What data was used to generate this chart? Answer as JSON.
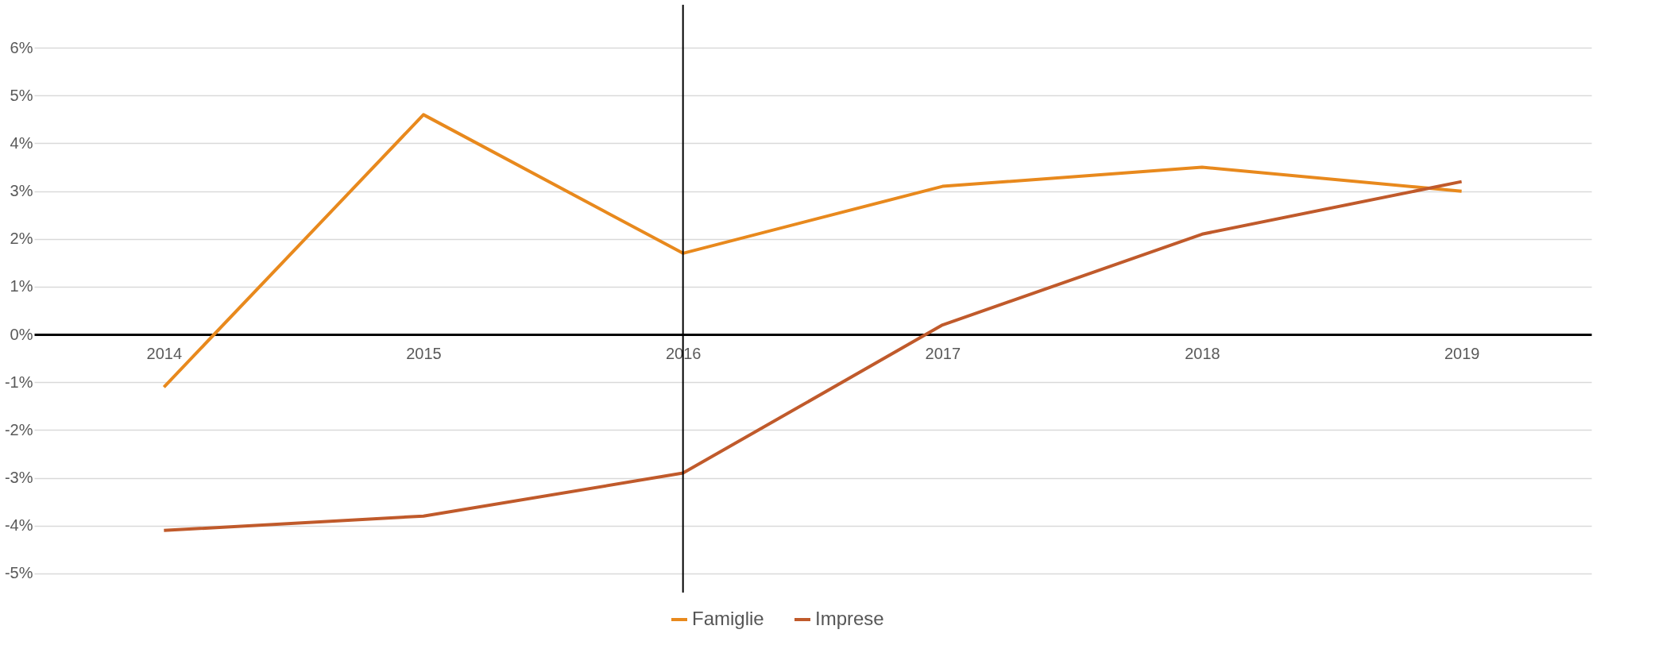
{
  "chart_data": {
    "type": "line",
    "categories": [
      "2014",
      "2015",
      "2016",
      "2017",
      "2018",
      "2019"
    ],
    "series": [
      {
        "name": "Famiglie",
        "color": "#e8891d",
        "values": [
          -1.1,
          4.6,
          1.7,
          3.1,
          3.5,
          3.0
        ]
      },
      {
        "name": "Imprese",
        "color": "#c05a2b",
        "values": [
          -4.1,
          -3.8,
          -2.9,
          0.2,
          2.1,
          3.2
        ]
      }
    ],
    "ylim": [
      -5.4,
      6.9
    ],
    "yticks": [
      {
        "value": -5,
        "label": "-5%"
      },
      {
        "value": -4,
        "label": "-4%"
      },
      {
        "value": -3,
        "label": "-3%"
      },
      {
        "value": -2,
        "label": "-2%"
      },
      {
        "value": -1,
        "label": "-1%"
      },
      {
        "value": 0,
        "label": "0%"
      },
      {
        "value": 1,
        "label": "1%"
      },
      {
        "value": 2,
        "label": "2%"
      },
      {
        "value": 3,
        "label": "3%"
      },
      {
        "value": 4,
        "label": "4%"
      },
      {
        "value": 5,
        "label": "5%"
      },
      {
        "value": 6,
        "label": "6%"
      }
    ],
    "ref_lines": [
      {
        "axis": "x",
        "value": "2016",
        "color": "#000000"
      }
    ],
    "grid": "y",
    "legend": "bottom",
    "marker": "none",
    "line_style": "solid"
  }
}
